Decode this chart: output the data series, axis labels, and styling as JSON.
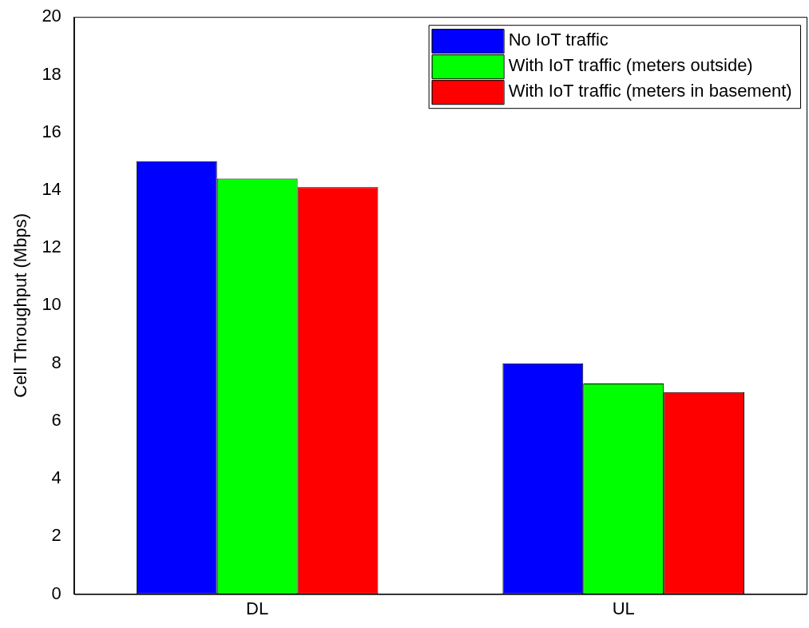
{
  "chart_data": {
    "type": "bar",
    "ylabel": "Cell Throughput (Mbps)",
    "categories": [
      "DL",
      "UL"
    ],
    "series": [
      {
        "name": "No IoT traffic",
        "color": "#0000ff",
        "values": [
          15,
          8
        ]
      },
      {
        "name": "With IoT traffic (meters outside)",
        "color": "#00ff00",
        "values": [
          14.4,
          7.3
        ]
      },
      {
        "name": "With IoT traffic (meters in basement)",
        "color": "#ff0000",
        "values": [
          14.1,
          7.0
        ]
      }
    ],
    "ylim": [
      0,
      20
    ],
    "yticks": [
      0,
      2,
      4,
      6,
      8,
      10,
      12,
      14,
      16,
      18,
      20
    ],
    "legend": "top right",
    "grid": false
  }
}
